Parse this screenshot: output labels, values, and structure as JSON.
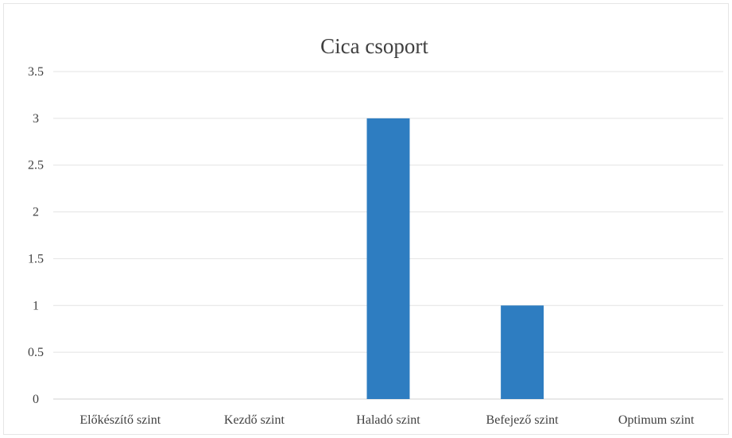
{
  "chart_data": {
    "type": "bar",
    "title": "Cica csoport",
    "xlabel": "",
    "ylabel": "",
    "categories": [
      "Előkészítő szint",
      "Kezdő szint",
      "Haladó szint",
      "Befejező szint",
      "Optimum szint"
    ],
    "values": [
      0,
      0,
      3,
      1,
      0
    ],
    "ylim": [
      0,
      3.5
    ],
    "yticks": [
      "0",
      "0.5",
      "1",
      "1.5",
      "2",
      "2.5",
      "3",
      "3.5"
    ],
    "grid": true,
    "legend": "none",
    "bar_color": "#2e7dc1"
  }
}
